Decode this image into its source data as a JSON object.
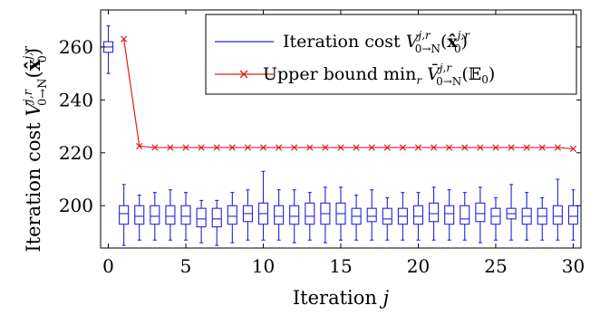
{
  "chart_data": {
    "type": "line",
    "xlabel": "Iteration j",
    "ylabel": "Iteration cost V^{j,r}_{0→N}(x̂^{j,r}_0)",
    "xlim": [
      -0.5,
      30.5
    ],
    "ylim": [
      184,
      274
    ],
    "xticks": [
      0,
      5,
      10,
      15,
      20,
      25,
      30
    ],
    "yticks": [
      200,
      220,
      240,
      260
    ],
    "grid": false,
    "legend_position": "top-right",
    "colors": {
      "iteration_cost": "#2323d9",
      "upper_bound": "#e21d1d"
    },
    "series": [
      {
        "name": "Iteration cost V^{j,r}_{0→N}(x̂^{j,r}_0)",
        "kind": "boxplot",
        "x": [
          0,
          1,
          2,
          3,
          4,
          5,
          6,
          7,
          8,
          9,
          10,
          11,
          12,
          13,
          14,
          15,
          16,
          17,
          18,
          19,
          20,
          21,
          22,
          23,
          24,
          25,
          26,
          27,
          28,
          29,
          30
        ],
        "whisker_low": [
          250,
          185,
          187,
          187,
          187,
          187,
          186,
          185,
          186,
          187,
          187,
          187,
          186,
          187,
          186,
          187,
          187,
          187,
          187,
          187,
          187,
          187,
          187,
          187,
          186,
          187,
          187,
          187,
          187,
          187,
          187
        ],
        "q1": [
          258,
          193,
          193,
          193,
          193,
          193,
          192,
          192,
          193,
          194,
          193,
          193,
          193,
          193,
          193,
          193,
          193,
          194,
          193,
          193,
          193,
          194,
          193,
          193,
          194,
          193,
          195,
          193,
          193,
          193,
          193
        ],
        "median": [
          260,
          197,
          196,
          196,
          196,
          196,
          195,
          195,
          196,
          197,
          197,
          196,
          196,
          196,
          197,
          197,
          196,
          196,
          195,
          196,
          196,
          197,
          197,
          195,
          197,
          196,
          197,
          196,
          196,
          196,
          196
        ],
        "q3": [
          262,
          200,
          200,
          200,
          200,
          200,
          199,
          199,
          200,
          200,
          201,
          200,
          200,
          201,
          201,
          201,
          199,
          199,
          199,
          199,
          200,
          201,
          200,
          200,
          201,
          199,
          199,
          199,
          199,
          200,
          200
        ],
        "whisker_high": [
          268,
          208,
          204,
          205,
          206,
          205,
          202,
          202,
          205,
          206,
          213,
          206,
          206,
          205,
          207,
          207,
          204,
          206,
          203,
          205,
          205,
          207,
          206,
          205,
          207,
          203,
          208,
          205,
          203,
          210,
          206
        ]
      },
      {
        "name": "Upper bound min_r V̄^{j,r}_{0→N}(𝔼_0)",
        "kind": "line",
        "marker": "x",
        "x": [
          1,
          2,
          3,
          4,
          5,
          6,
          7,
          8,
          9,
          10,
          11,
          12,
          13,
          14,
          15,
          16,
          17,
          18,
          19,
          20,
          21,
          22,
          23,
          24,
          25,
          26,
          27,
          28,
          29,
          30
        ],
        "values": [
          263,
          222.5,
          222,
          222,
          222,
          222,
          222,
          222,
          222,
          222,
          222,
          222,
          222,
          222,
          222,
          222,
          222,
          222,
          222,
          222,
          222,
          222,
          222,
          222,
          222,
          222,
          222,
          222,
          222,
          221.5
        ]
      }
    ]
  }
}
